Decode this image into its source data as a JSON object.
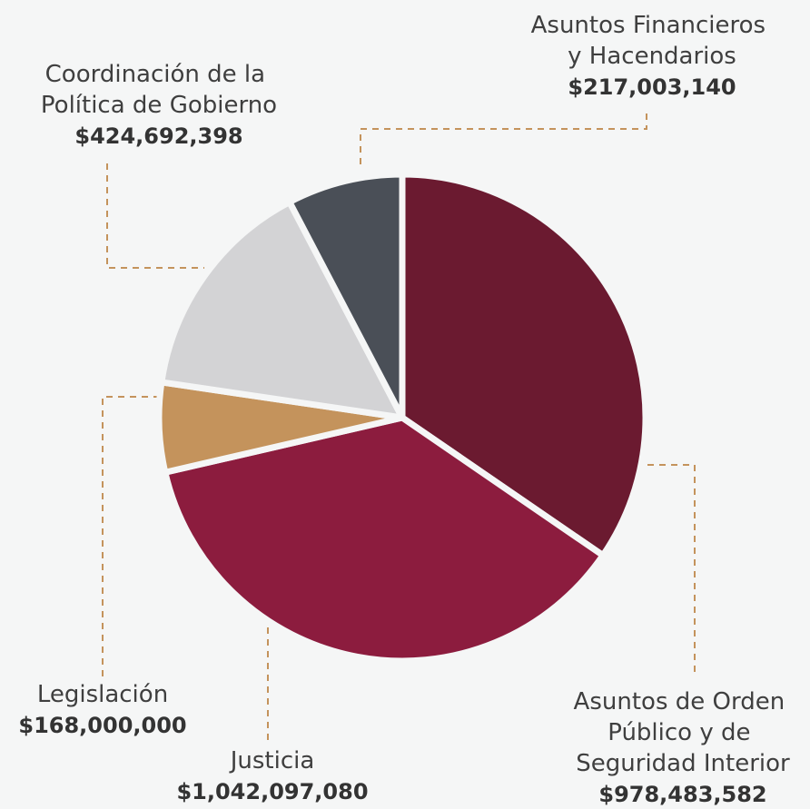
{
  "chart_data": {
    "type": "pie",
    "categories": [
      "Asuntos de Orden Público y de Seguridad Interior",
      "Justicia",
      "Legislación",
      "Coordinación de la Política de Gobierno",
      "Asuntos Financieros y Hacendarios"
    ],
    "values": [
      978483582,
      1042097080,
      168000000,
      424692398,
      217003140
    ],
    "value_labels": [
      "$978,483,582",
      "$1,042,097,080",
      "$168,000,000",
      "$424,692,398",
      "$217,003,140"
    ],
    "colors": [
      "#6b1a30",
      "#8c1c3e",
      "#c4935c",
      "#d3d3d5",
      "#4a4f57"
    ]
  }
}
